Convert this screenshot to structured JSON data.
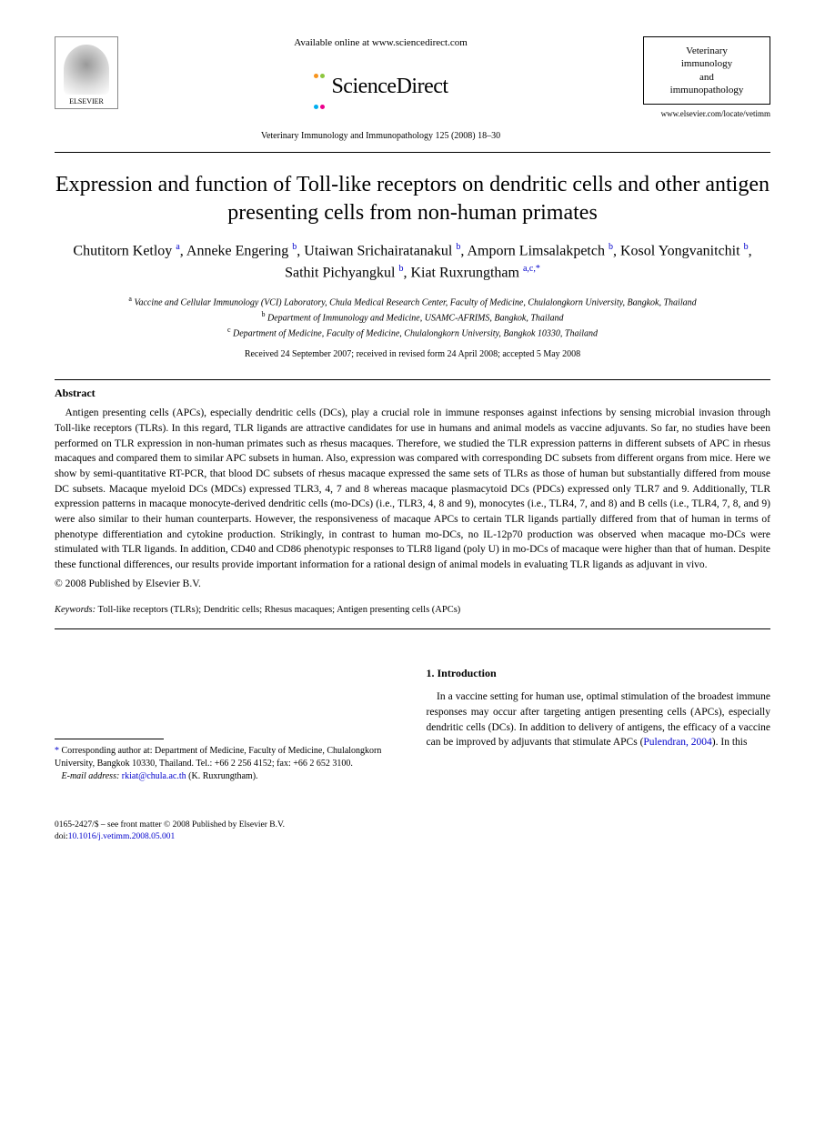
{
  "header": {
    "available_online": "Available online at www.sciencedirect.com",
    "brand": "ScienceDirect",
    "journal_ref": "Veterinary Immunology and Immunopathology 125 (2008) 18–30",
    "journal_box_line1": "Veterinary",
    "journal_box_line2": "immunology",
    "journal_box_line3": "and",
    "journal_box_line4": "immunopathology",
    "journal_link": "www.elsevier.com/locate/vetimm",
    "elsevier_label": "ELSEVIER",
    "sd_dot_colors": [
      "#f7941d",
      "#8dc63f",
      "#00aeef",
      "#ec008c"
    ]
  },
  "title": "Expression and function of Toll-like receptors on dendritic cells and other antigen presenting cells from non-human primates",
  "authors": [
    {
      "name": "Chutitorn Ketloy",
      "aff": "a"
    },
    {
      "name": "Anneke Engering",
      "aff": "b"
    },
    {
      "name": "Utaiwan Srichairatanakul",
      "aff": "b"
    },
    {
      "name": "Amporn Limsalakpetch",
      "aff": "b"
    },
    {
      "name": "Kosol Yongvanitchit",
      "aff": "b"
    },
    {
      "name": "Sathit Pichyangkul",
      "aff": "b"
    },
    {
      "name": "Kiat Ruxrungtham",
      "aff": "a,c,",
      "star": true
    }
  ],
  "affiliations": {
    "a": "Vaccine and Cellular Immunology (VCI) Laboratory, Chula Medical Research Center, Faculty of Medicine, Chulalongkorn University, Bangkok, Thailand",
    "b": "Department of Immunology and Medicine, USAMC-AFRIMS, Bangkok, Thailand",
    "c": "Department of Medicine, Faculty of Medicine, Chulalongkorn University, Bangkok 10330, Thailand"
  },
  "dates": "Received 24 September 2007; received in revised form 24 April 2008; accepted 5 May 2008",
  "abstract": {
    "heading": "Abstract",
    "text": "Antigen presenting cells (APCs), especially dendritic cells (DCs), play a crucial role in immune responses against infections by sensing microbial invasion through Toll-like receptors (TLRs). In this regard, TLR ligands are attractive candidates for use in humans and animal models as vaccine adjuvants. So far, no studies have been performed on TLR expression in non-human primates such as rhesus macaques. Therefore, we studied the TLR expression patterns in different subsets of APC in rhesus macaques and compared them to similar APC subsets in human. Also, expression was compared with corresponding DC subsets from different organs from mice. Here we show by semi-quantitative RT-PCR, that blood DC subsets of rhesus macaque expressed the same sets of TLRs as those of human but substantially differed from mouse DC subsets. Macaque myeloid DCs (MDCs) expressed TLR3, 4, 7 and 8 whereas macaque plasmacytoid DCs (PDCs) expressed only TLR7 and 9. Additionally, TLR expression patterns in macaque monocyte-derived dendritic cells (mo-DCs) (i.e., TLR3, 4, 8 and 9), monocytes (i.e., TLR4, 7, and 8) and B cells (i.e., TLR4, 7, 8, and 9) were also similar to their human counterparts. However, the responsiveness of macaque APCs to certain TLR ligands partially differed from that of human in terms of phenotype differentiation and cytokine production. Strikingly, in contrast to human mo-DCs, no IL-12p70 production was observed when macaque mo-DCs were stimulated with TLR ligands. In addition, CD40 and CD86 phenotypic responses to TLR8 ligand (poly U) in mo-DCs of macaque were higher than that of human. Despite these functional differences, our results provide important information for a rational design of animal models in evaluating TLR ligands as adjuvant in vivo.",
    "copyright": "© 2008 Published by Elsevier B.V."
  },
  "keywords": {
    "label": "Keywords:",
    "text": "Toll-like receptors (TLRs); Dendritic cells; Rhesus macaques; Antigen presenting cells (APCs)"
  },
  "corresponding": {
    "text": "Corresponding author at: Department of Medicine, Faculty of Medicine, Chulalongkorn University, Bangkok 10330, Thailand. Tel.: +66 2 256 4152; fax: +66 2 652 3100.",
    "email_label": "E-mail address:",
    "email": "rkiat@chula.ac.th",
    "email_suffix": "(K. Ruxrungtham)."
  },
  "introduction": {
    "heading": "1.  Introduction",
    "text_before_cite": "In a vaccine setting for human use, optimal stimulation of the broadest immune responses may occur after targeting antigen presenting cells (APCs), especially dendritic cells (DCs). In addition to delivery of antigens, the efficacy of a vaccine can be improved by adjuvants that stimulate APCs (",
    "citation": "Pulendran, 2004",
    "text_after_cite": "). In this"
  },
  "footer": {
    "issn_line": "0165-2427/$ – see front matter © 2008 Published by Elsevier B.V.",
    "doi_label": "doi:",
    "doi": "10.1016/j.vetimm.2008.05.001"
  }
}
